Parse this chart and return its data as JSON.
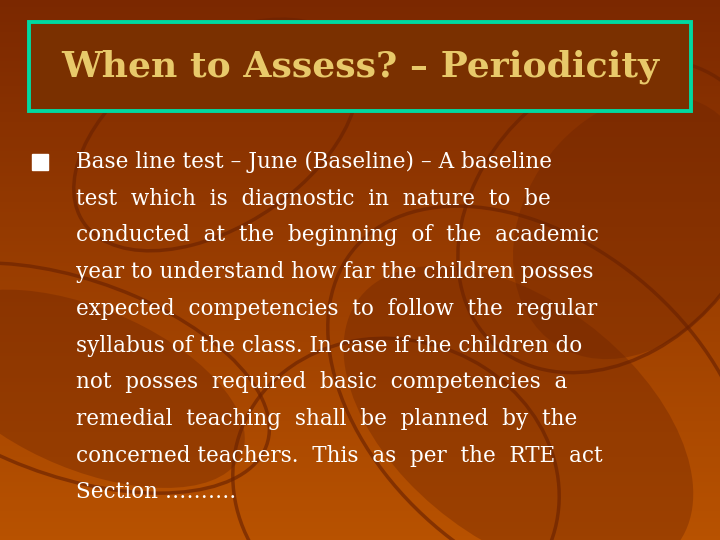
{
  "title": "When to Assess? – Periodicity",
  "title_color": "#E8C96A",
  "title_bg_color": "#7A3000",
  "title_border_color": "#00D9A0",
  "bg_color_top": "#7B2800",
  "bg_color_bottom": "#B84C00",
  "bullet_color": "#FFFFFF",
  "bullet_marker_color": "#FFFFFF",
  "title_fontsize": 26,
  "body_fontsize": 15.5,
  "body_lines": [
    "Base line test – June (Baseline) – A baseline",
    "test  which  is  diagnostic  in  nature  to  be",
    "conducted  at  the  beginning  of  the  academic",
    "year to understand how far the children posses",
    "expected  competencies  to  follow  the  regular",
    "syllabus of the class. In case if the children do",
    "not  posses  required  basic  competencies  a",
    "remedial  teaching  shall  be  planned  by  the",
    "concerned teachers.  This  as  per  the  RTE  act",
    "Section ………."
  ],
  "leaf_outlines": [
    [
      30,
      0.75,
      0.25,
      0.5,
      0.8
    ],
    [
      -20,
      0.85,
      0.6,
      0.4,
      0.6
    ],
    [
      60,
      0.1,
      0.3,
      0.35,
      0.6
    ],
    [
      10,
      0.55,
      0.1,
      0.45,
      0.55
    ],
    [
      -40,
      0.3,
      0.75,
      0.3,
      0.5
    ]
  ],
  "leaf_filled": [
    [
      35,
      0.72,
      0.22,
      0.38,
      0.65
    ],
    [
      -15,
      0.88,
      0.58,
      0.32,
      0.5
    ],
    [
      55,
      0.12,
      0.28,
      0.28,
      0.5
    ]
  ],
  "leaf_color": "#6B2200"
}
